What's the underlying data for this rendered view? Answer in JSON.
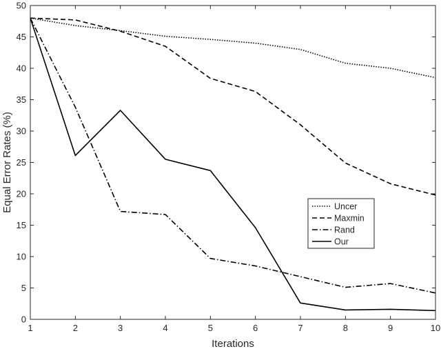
{
  "chart_data": {
    "type": "line",
    "title": "",
    "xlabel": "Iterations",
    "ylabel": "Equal Error Rates (%)",
    "xlim": [
      1,
      10
    ],
    "ylim": [
      0,
      50
    ],
    "x": [
      1,
      2,
      3,
      4,
      5,
      6,
      7,
      8,
      9,
      10
    ],
    "xticks": [
      "1",
      "2",
      "3",
      "4",
      "5",
      "6",
      "7",
      "8",
      "9",
      "10"
    ],
    "yticks": [
      "0",
      "5",
      "10",
      "15",
      "20",
      "25",
      "30",
      "35",
      "40",
      "45",
      "50"
    ],
    "grid": false,
    "legend_position": "lower-right",
    "series": [
      {
        "name": "Uncer",
        "style": "dotted",
        "color": "#000000",
        "values": [
          48.0,
          46.8,
          46.0,
          45.1,
          44.6,
          44.0,
          43.0,
          40.8,
          40.0,
          38.5
        ]
      },
      {
        "name": "Maxmin",
        "style": "dashed",
        "color": "#000000",
        "values": [
          48.0,
          47.7,
          45.9,
          43.5,
          38.4,
          36.3,
          31.0,
          24.9,
          21.6,
          19.8
        ]
      },
      {
        "name": "Rand",
        "style": "dashdot",
        "color": "#000000",
        "values": [
          48.0,
          33.8,
          17.2,
          16.7,
          9.7,
          8.5,
          6.8,
          5.1,
          5.7,
          4.2
        ]
      },
      {
        "name": "Our",
        "style": "solid",
        "color": "#000000",
        "values": [
          48.0,
          26.1,
          33.3,
          25.5,
          23.7,
          14.6,
          2.6,
          1.5,
          1.6,
          1.4
        ]
      }
    ]
  }
}
